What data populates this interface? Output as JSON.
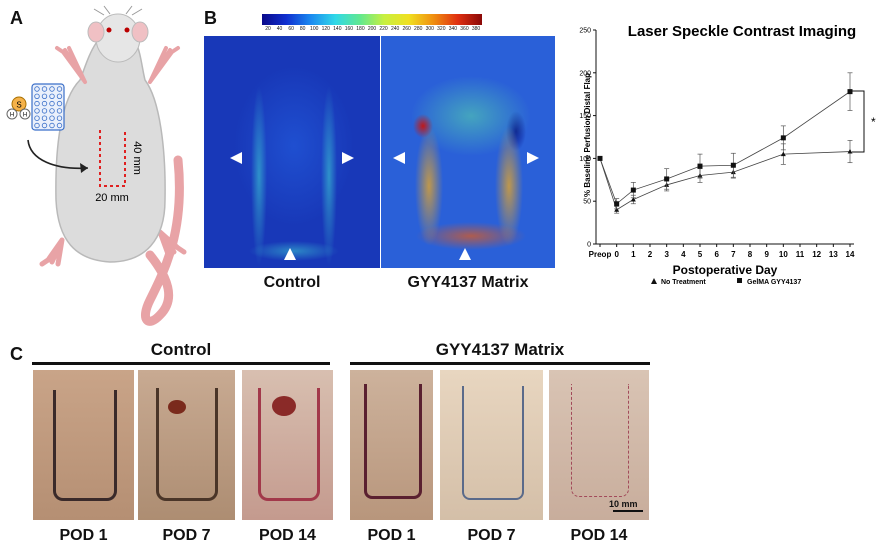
{
  "panels": {
    "a": "A",
    "b": "B",
    "c": "C"
  },
  "panel_a": {
    "plate_label": "S",
    "molecule_atoms": [
      "H",
      "H"
    ],
    "flap_length": "40 mm",
    "flap_width": "20 mm"
  },
  "panel_b": {
    "colorbar_ticks": [
      "20",
      "40",
      "60",
      "80",
      "100",
      "120",
      "140",
      "160",
      "180",
      "200",
      "220",
      "240",
      "260",
      "280",
      "300",
      "320",
      "340",
      "360",
      "380"
    ],
    "image_labels": [
      "Control",
      "GYY4137 Matrix"
    ]
  },
  "chart_data": {
    "type": "line",
    "title": "Laser Speckle Contrast Imaging",
    "xlabel": "Postoperative Day",
    "ylabel": "% Baseline Perfusion Distal Flap",
    "categories": [
      "Preop",
      "0",
      "1",
      "2",
      "3",
      "4",
      "5",
      "6",
      "7",
      "8",
      "9",
      "10",
      "11",
      "12",
      "13",
      "14"
    ],
    "ylim": [
      0,
      250
    ],
    "yticks": [
      "0",
      "50",
      "100",
      "150",
      "200",
      "250"
    ],
    "series": [
      {
        "name": "No Treatment",
        "marker": "triangle",
        "points": [
          [
            "Preop",
            100
          ],
          [
            "0",
            40
          ],
          [
            "1",
            52
          ],
          [
            "3",
            69
          ],
          [
            "5",
            80
          ],
          [
            "7",
            84
          ],
          [
            "10",
            105
          ],
          [
            "14",
            108
          ]
        ],
        "errors": [
          0,
          4,
          5,
          7,
          8,
          7,
          12,
          13
        ]
      },
      {
        "name": "GelMA GYY4137",
        "marker": "square",
        "points": [
          [
            "Preop",
            100
          ],
          [
            "0",
            47
          ],
          [
            "1",
            63
          ],
          [
            "3",
            76
          ],
          [
            "5",
            91
          ],
          [
            "7",
            92
          ],
          [
            "10",
            124
          ],
          [
            "14",
            178
          ]
        ],
        "errors": [
          0,
          6,
          9,
          12,
          14,
          14,
          14,
          22
        ]
      }
    ],
    "annotation": "*",
    "legend_position": "bottom"
  },
  "panel_c": {
    "group_labels": [
      "Control",
      "GYY4137 Matrix"
    ],
    "pod_labels": [
      "POD 1",
      "POD 7",
      "POD 14",
      "POD 1",
      "POD 7",
      "POD 14"
    ],
    "scale_bar": "10 mm"
  }
}
